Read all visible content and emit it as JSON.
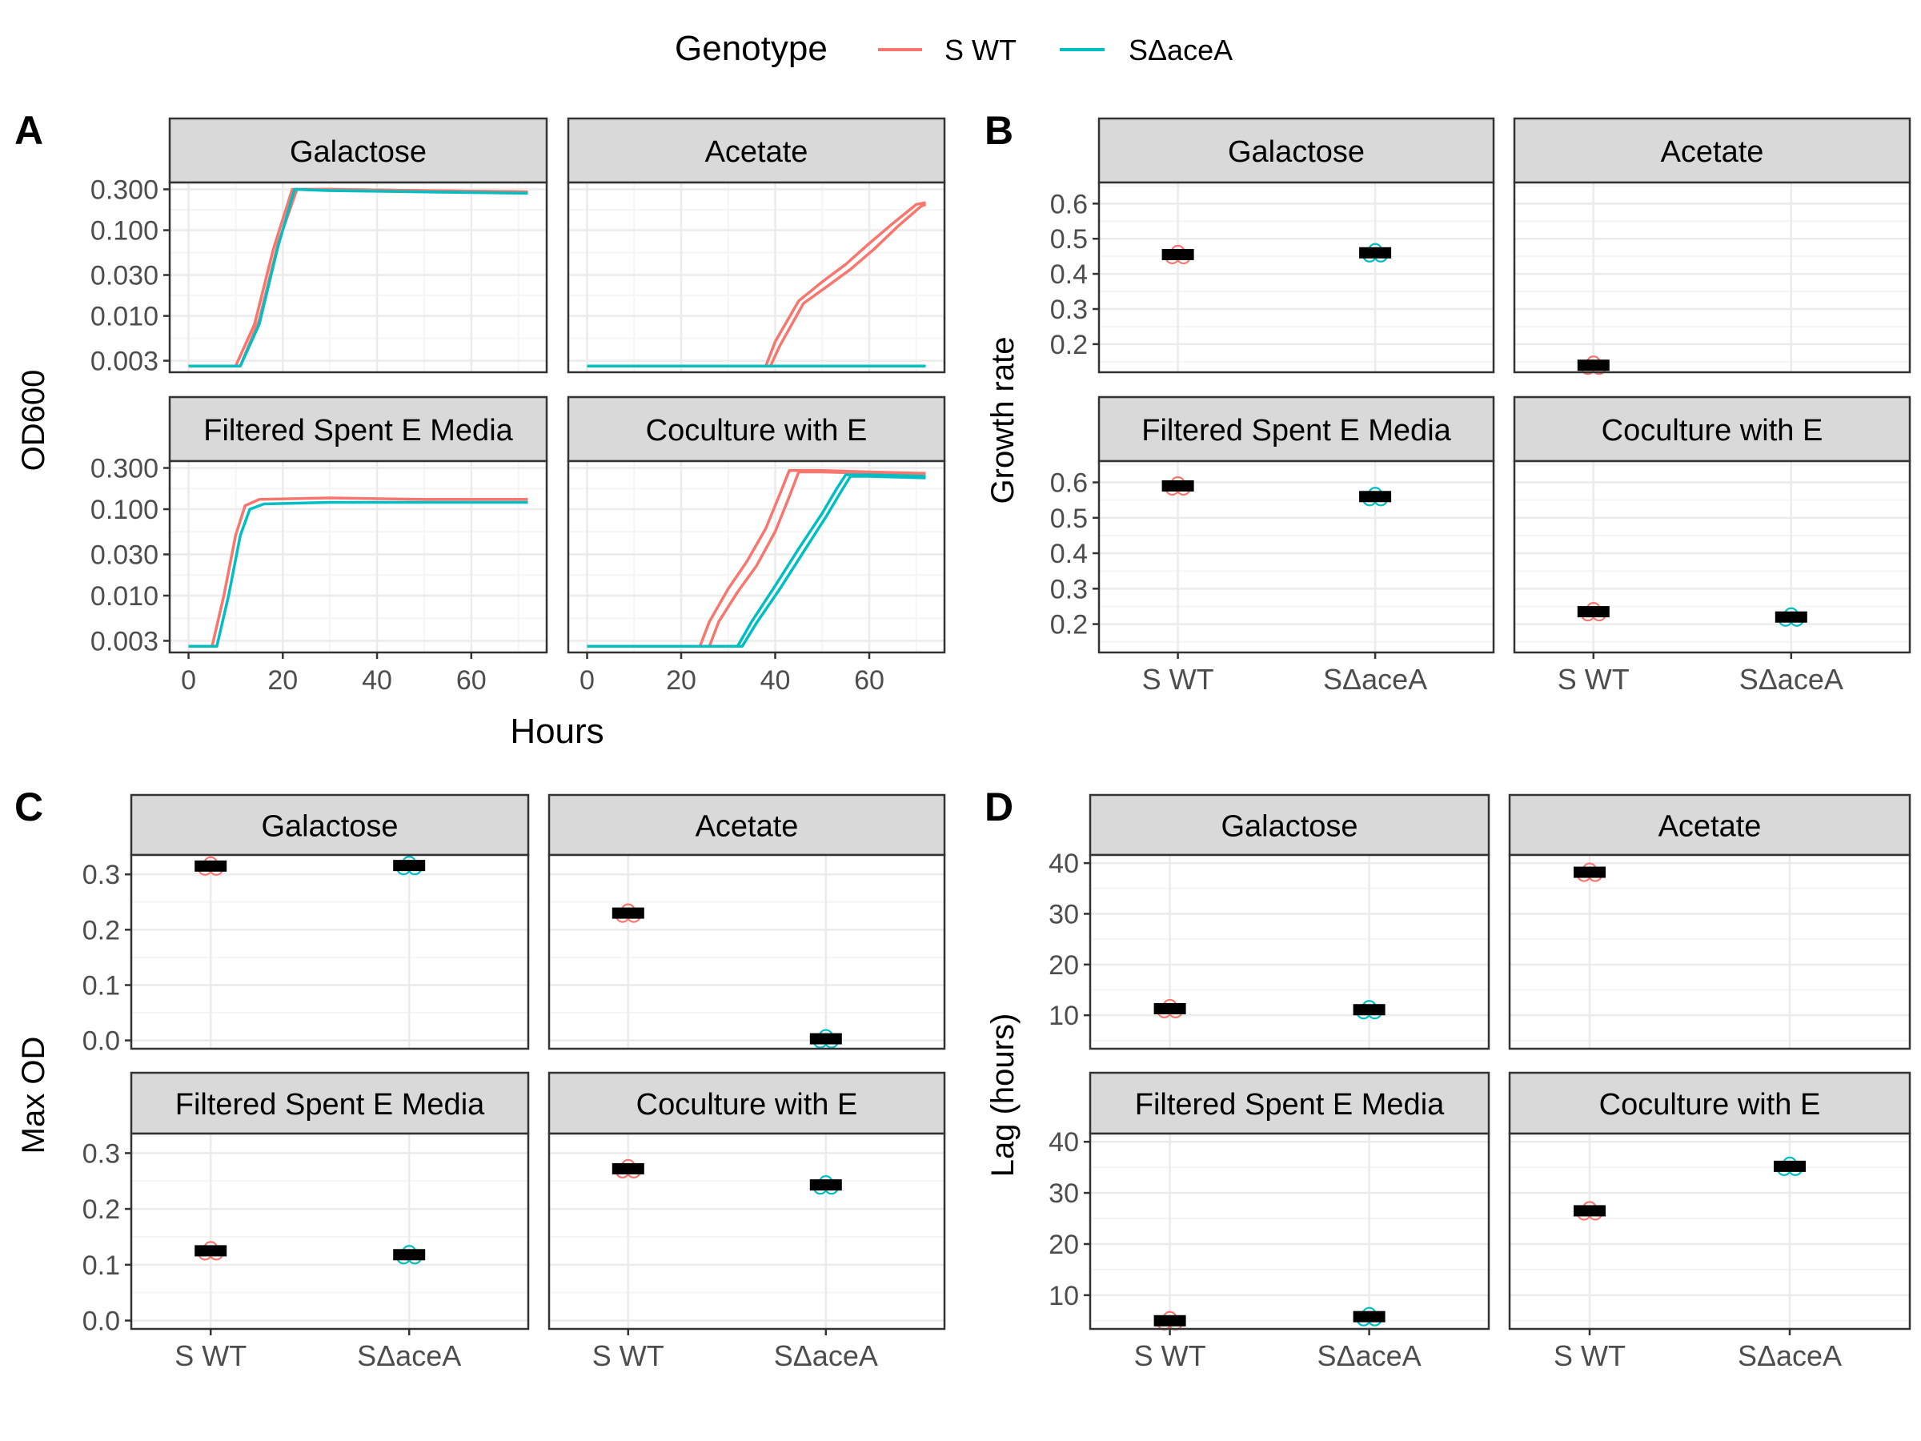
{
  "colors": {
    "s_wt": "#F8766D",
    "s_dacea": "#00BFC4",
    "grid_major": "#EBEBEB",
    "grid_minor": "#F5F5F5",
    "strip_bg": "#D9D9D9",
    "panel_border": "#333333",
    "summary_bar": "#000000"
  },
  "legend": {
    "title": "Genotype",
    "items": [
      "S WT",
      "SΔaceA"
    ]
  },
  "panels": {
    "A": {
      "tag": "A",
      "ylabel": "OD600",
      "xlabel": "Hours"
    },
    "B": {
      "tag": "B",
      "ylabel": "Growth rate"
    },
    "C": {
      "tag": "C",
      "ylabel": "Max OD"
    },
    "D": {
      "tag": "D",
      "ylabel": "Lag (hours)"
    }
  },
  "facets": [
    "Galactose",
    "Acetate",
    "Filtered Spent E Media",
    "Coculture with E"
  ],
  "chart_data": [
    {
      "id": "A",
      "type": "line",
      "x_axis": {
        "label": "Hours",
        "range": [
          -4,
          76
        ],
        "ticks": [
          0,
          20,
          40,
          60
        ]
      },
      "y_axis": {
        "label": "OD600",
        "scale": "log10",
        "range": [
          0.0022,
          0.36
        ],
        "ticks": [
          0.003,
          0.01,
          0.03,
          0.1,
          0.3
        ],
        "tick_labels": [
          "0.003",
          "0.010",
          "0.030",
          "0.100",
          "0.300"
        ]
      },
      "facets": [
        {
          "name": "Galactose",
          "series": [
            {
              "genotype": "S WT",
              "x": [
                0,
                10,
                14,
                18,
                22,
                30,
                50,
                72
              ],
              "y": [
                0.0026,
                0.0026,
                0.008,
                0.06,
                0.3,
                0.3,
                0.29,
                0.28
              ]
            },
            {
              "genotype": "S WT",
              "x": [
                0,
                11,
                15,
                19,
                23,
                30,
                50,
                72
              ],
              "y": [
                0.0026,
                0.0026,
                0.009,
                0.07,
                0.3,
                0.3,
                0.29,
                0.28
              ]
            },
            {
              "genotype": "SΔaceA",
              "x": [
                0,
                11,
                15,
                19,
                22.5,
                30,
                50,
                72
              ],
              "y": [
                0.0026,
                0.0026,
                0.008,
                0.065,
                0.3,
                0.29,
                0.28,
                0.27
              ]
            }
          ]
        },
        {
          "name": "Acetate",
          "series": [
            {
              "genotype": "S WT",
              "x": [
                0,
                38,
                40,
                45,
                50,
                55,
                60,
                65,
                70,
                72
              ],
              "y": [
                0.0026,
                0.0026,
                0.005,
                0.015,
                0.025,
                0.04,
                0.07,
                0.12,
                0.2,
                0.21
              ]
            },
            {
              "genotype": "S WT",
              "x": [
                0,
                39,
                41,
                46,
                51,
                56,
                61,
                66,
                71,
                72
              ],
              "y": [
                0.0026,
                0.0026,
                0.0045,
                0.014,
                0.022,
                0.035,
                0.06,
                0.11,
                0.19,
                0.2
              ]
            },
            {
              "genotype": "SΔaceA",
              "x": [
                0,
                72
              ],
              "y": [
                0.0026,
                0.0026
              ]
            }
          ]
        },
        {
          "name": "Filtered Spent E Media",
          "series": [
            {
              "genotype": "S WT",
              "x": [
                0,
                5,
                7.5,
                10,
                12,
                15,
                30,
                50,
                72
              ],
              "y": [
                0.0026,
                0.0026,
                0.01,
                0.05,
                0.11,
                0.13,
                0.135,
                0.13,
                0.13
              ]
            },
            {
              "genotype": "SΔaceA",
              "x": [
                0,
                6,
                8.5,
                11,
                13,
                16,
                30,
                50,
                72
              ],
              "y": [
                0.0026,
                0.0026,
                0.01,
                0.05,
                0.1,
                0.115,
                0.12,
                0.12,
                0.12
              ]
            }
          ]
        },
        {
          "name": "Coculture with E",
          "series": [
            {
              "genotype": "S WT",
              "x": [
                0,
                24,
                26,
                30,
                34,
                38,
                41,
                43,
                50,
                60,
                72
              ],
              "y": [
                0.0026,
                0.0026,
                0.005,
                0.012,
                0.025,
                0.06,
                0.15,
                0.28,
                0.28,
                0.27,
                0.26
              ]
            },
            {
              "genotype": "S WT",
              "x": [
                0,
                26,
                28,
                32,
                36,
                40,
                43,
                45,
                50,
                60,
                72
              ],
              "y": [
                0.0026,
                0.0026,
                0.005,
                0.011,
                0.022,
                0.055,
                0.14,
                0.27,
                0.27,
                0.26,
                0.25
              ]
            },
            {
              "genotype": "SΔaceA",
              "x": [
                0,
                32,
                35,
                40,
                45,
                50,
                53,
                55,
                60,
                72
              ],
              "y": [
                0.0026,
                0.0026,
                0.005,
                0.013,
                0.035,
                0.09,
                0.17,
                0.25,
                0.25,
                0.24
              ]
            },
            {
              "genotype": "SΔaceA",
              "x": [
                0,
                33,
                36,
                41,
                46,
                51,
                54,
                56,
                60,
                72
              ],
              "y": [
                0.0026,
                0.0026,
                0.0048,
                0.012,
                0.032,
                0.085,
                0.16,
                0.24,
                0.24,
                0.23
              ]
            }
          ]
        }
      ]
    },
    {
      "id": "B",
      "type": "scatter",
      "categories": [
        "S WT",
        "SΔaceA"
      ],
      "y_axis": {
        "label": "Growth rate"
      },
      "facets": [
        {
          "name": "Galactose",
          "y_range": [
            0.12,
            0.66
          ],
          "ticks": [
            0.2,
            0.3,
            0.4,
            0.5,
            0.6
          ],
          "tick_labels": [
            "0.2",
            "0.3",
            "0.4",
            "0.5",
            "0.6"
          ],
          "values": [
            0.455,
            0.46
          ]
        },
        {
          "name": "Acetate",
          "y_range": [
            0.12,
            0.66
          ],
          "ticks": [
            0.2,
            0.3,
            0.4,
            0.5,
            0.6
          ],
          "tick_labels": [
            "0.2",
            "0.3",
            "0.4",
            "0.5",
            "0.6"
          ],
          "values": [
            0.14,
            null
          ]
        },
        {
          "name": "Filtered Spent E Media",
          "y_range": [
            0.12,
            0.66
          ],
          "ticks": [
            0.2,
            0.3,
            0.4,
            0.5,
            0.6
          ],
          "tick_labels": [
            "0.2",
            "0.3",
            "0.4",
            "0.5",
            "0.6"
          ],
          "values": [
            0.59,
            0.56
          ]
        },
        {
          "name": "Coculture with E",
          "y_range": [
            0.12,
            0.66
          ],
          "ticks": [
            0.2,
            0.3,
            0.4,
            0.5,
            0.6
          ],
          "tick_labels": [
            "0.2",
            "0.3",
            "0.4",
            "0.5",
            "0.6"
          ],
          "values": [
            0.235,
            0.22
          ]
        }
      ]
    },
    {
      "id": "C",
      "type": "scatter",
      "categories": [
        "S WT",
        "SΔaceA"
      ],
      "y_axis": {
        "label": "Max OD"
      },
      "facets": [
        {
          "name": "Galactose",
          "y_range": [
            -0.015,
            0.335
          ],
          "ticks": [
            0,
            0.1,
            0.2,
            0.3
          ],
          "tick_labels": [
            "0.0",
            "0.1",
            "0.2",
            "0.3"
          ],
          "values": [
            0.315,
            0.316
          ]
        },
        {
          "name": "Acetate",
          "y_range": [
            -0.015,
            0.335
          ],
          "ticks": [
            0,
            0.1,
            0.2,
            0.3
          ],
          "tick_labels": [
            "0.0",
            "0.1",
            "0.2",
            "0.3"
          ],
          "values": [
            0.23,
            0.003
          ]
        },
        {
          "name": "Filtered Spent E Media",
          "y_range": [
            -0.015,
            0.335
          ],
          "ticks": [
            0,
            0.1,
            0.2,
            0.3
          ],
          "tick_labels": [
            "0.0",
            "0.1",
            "0.2",
            "0.3"
          ],
          "values": [
            0.125,
            0.118
          ]
        },
        {
          "name": "Coculture with E",
          "y_range": [
            -0.015,
            0.335
          ],
          "ticks": [
            0,
            0.1,
            0.2,
            0.3
          ],
          "tick_labels": [
            "0.0",
            "0.1",
            "0.2",
            "0.3"
          ],
          "values": [
            0.272,
            0.243
          ]
        }
      ]
    },
    {
      "id": "D",
      "type": "scatter",
      "categories": [
        "S WT",
        "SΔaceA"
      ],
      "y_axis": {
        "label": "Lag (hours)"
      },
      "facets": [
        {
          "name": "Galactose",
          "y_range": [
            3.4,
            41.6
          ],
          "ticks": [
            10,
            20,
            30,
            40
          ],
          "tick_labels": [
            "10",
            "20",
            "30",
            "40"
          ],
          "values": [
            11.3,
            11.1
          ]
        },
        {
          "name": "Acetate",
          "y_range": [
            3.4,
            41.6
          ],
          "ticks": [
            10,
            20,
            30,
            40
          ],
          "tick_labels": [
            "10",
            "20",
            "30",
            "40"
          ],
          "values": [
            38.2,
            null
          ]
        },
        {
          "name": "Filtered Spent E Media",
          "y_range": [
            3.4,
            41.6
          ],
          "ticks": [
            10,
            20,
            30,
            40
          ],
          "tick_labels": [
            "10",
            "20",
            "30",
            "40"
          ],
          "values": [
            5.0,
            5.8
          ]
        },
        {
          "name": "Coculture with E",
          "y_range": [
            3.4,
            41.6
          ],
          "ticks": [
            10,
            20,
            30,
            40
          ],
          "tick_labels": [
            "10",
            "20",
            "30",
            "40"
          ],
          "values": [
            26.5,
            35.2
          ]
        }
      ]
    }
  ]
}
